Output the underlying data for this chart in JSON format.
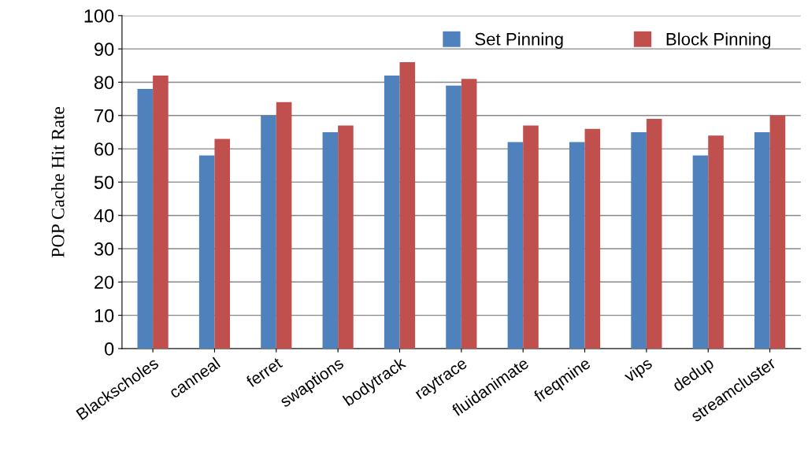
{
  "chart_data": {
    "type": "bar",
    "ylabel": "POP Cache Hit Rate",
    "categories": [
      "Blackscholes",
      "canneal",
      "ferret",
      "swaptions",
      "bodytrack",
      "raytrace",
      "fluidanimate",
      "freqmine",
      "vips",
      "dedup",
      "streamcluster"
    ],
    "series": [
      {
        "name": "Set Pinning",
        "color": "#4f81bd",
        "values": [
          78,
          58,
          70,
          65,
          82,
          79,
          62,
          62,
          65,
          58,
          65
        ]
      },
      {
        "name": "Block Pinning",
        "color": "#c0504d",
        "values": [
          82,
          63,
          74,
          67,
          86,
          81,
          67,
          66,
          69,
          64,
          70
        ]
      }
    ],
    "ylim": [
      0,
      100
    ],
    "yticks": [
      0,
      10,
      20,
      30,
      40,
      50,
      60,
      70,
      80,
      90,
      100
    ],
    "grid": "y",
    "legend": "top right"
  }
}
